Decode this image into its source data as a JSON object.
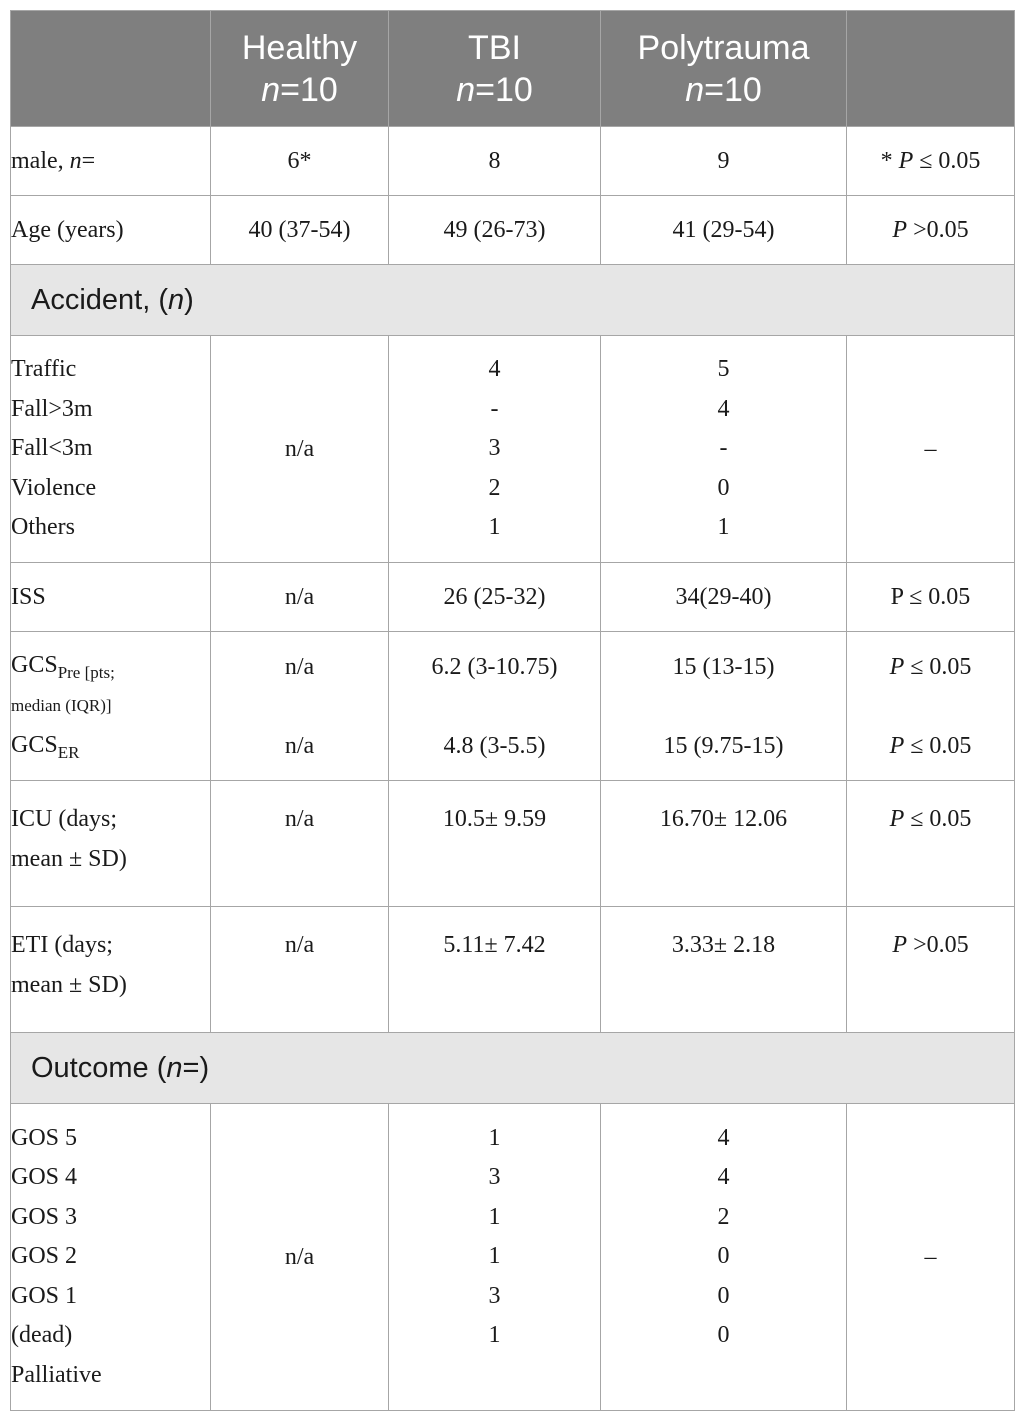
{
  "header": {
    "col0": "",
    "healthy": "Healthy",
    "tbi": "TBI",
    "polytrauma": "Polytrauma",
    "n_label": "n",
    "n_value": "=10",
    "col4": ""
  },
  "rows": {
    "male": {
      "label_main": "male, ",
      "label_n": "n",
      "label_eq": "=",
      "healthy": "6*",
      "tbi": "8",
      "poly": "9",
      "p_star": "* ",
      "p_letter": "P",
      "p_rest": " ≤ 0.05"
    },
    "age": {
      "label": "Age (years)",
      "healthy": "40 (37-54)",
      "tbi": "49 (26-73)",
      "poly": "41 (29-54)",
      "p_letter": "P",
      "p_rest": " >0.05"
    },
    "accident_header": {
      "label_main": "Accident, (",
      "label_n": "n",
      "label_end": ")"
    },
    "accident": {
      "labels": [
        "Traffic",
        "Fall>3m",
        "Fall<3m",
        "Violence",
        "Others"
      ],
      "healthy": "n/a",
      "tbi": [
        "4",
        "-",
        "3",
        "2",
        "1"
      ],
      "poly": [
        "5",
        "4",
        "-",
        "0",
        "1"
      ],
      "p": "–"
    },
    "iss": {
      "label": "ISS",
      "healthy": "n/a",
      "tbi": "26 (25-32)",
      "poly": "34(29-40)",
      "p": "P ≤ 0.05"
    },
    "gcs": {
      "pre_main": "GCS",
      "pre_sub": "Pre [pts;",
      "pre_line2": "median (IQR)]",
      "er_main": "GCS",
      "er_sub": "ER",
      "healthy_pre": "n/a",
      "healthy_er": "n/a",
      "tbi_pre": "6.2 (3-10.75)",
      "tbi_er": "4.8 (3-5.5)",
      "poly_pre": "15 (13-15)",
      "poly_er": "15 (9.75-15)",
      "p_letter": "P",
      "p_rest": " ≤ 0.05"
    },
    "icu": {
      "label_line1": "ICU (days;",
      "label_line2": "mean ± SD)",
      "healthy": "n/a",
      "tbi": "10.5± 9.59",
      "poly": "16.70± 12.06",
      "p_letter": "P",
      "p_rest": " ≤ 0.05"
    },
    "eti": {
      "label_line1": "ETI (days;",
      "label_line2": "mean ± SD)",
      "healthy": "n/a",
      "tbi": "5.11± 7.42",
      "poly": "3.33± 2.18",
      "p_letter": "P",
      "p_rest": " >0.05"
    },
    "outcome_header": {
      "label_main": "Outcome (",
      "label_n": "n",
      "label_end": "=)"
    },
    "outcome": {
      "labels": [
        "GOS 5",
        "GOS 4",
        "GOS 3",
        "GOS 2",
        "GOS 1",
        "(dead)",
        "Palliative"
      ],
      "healthy": "n/a",
      "tbi": [
        "1",
        "3",
        "1",
        "1",
        "3",
        "1"
      ],
      "poly": [
        "4",
        "4",
        "2",
        "0",
        "0",
        "0"
      ],
      "p": "–"
    }
  }
}
